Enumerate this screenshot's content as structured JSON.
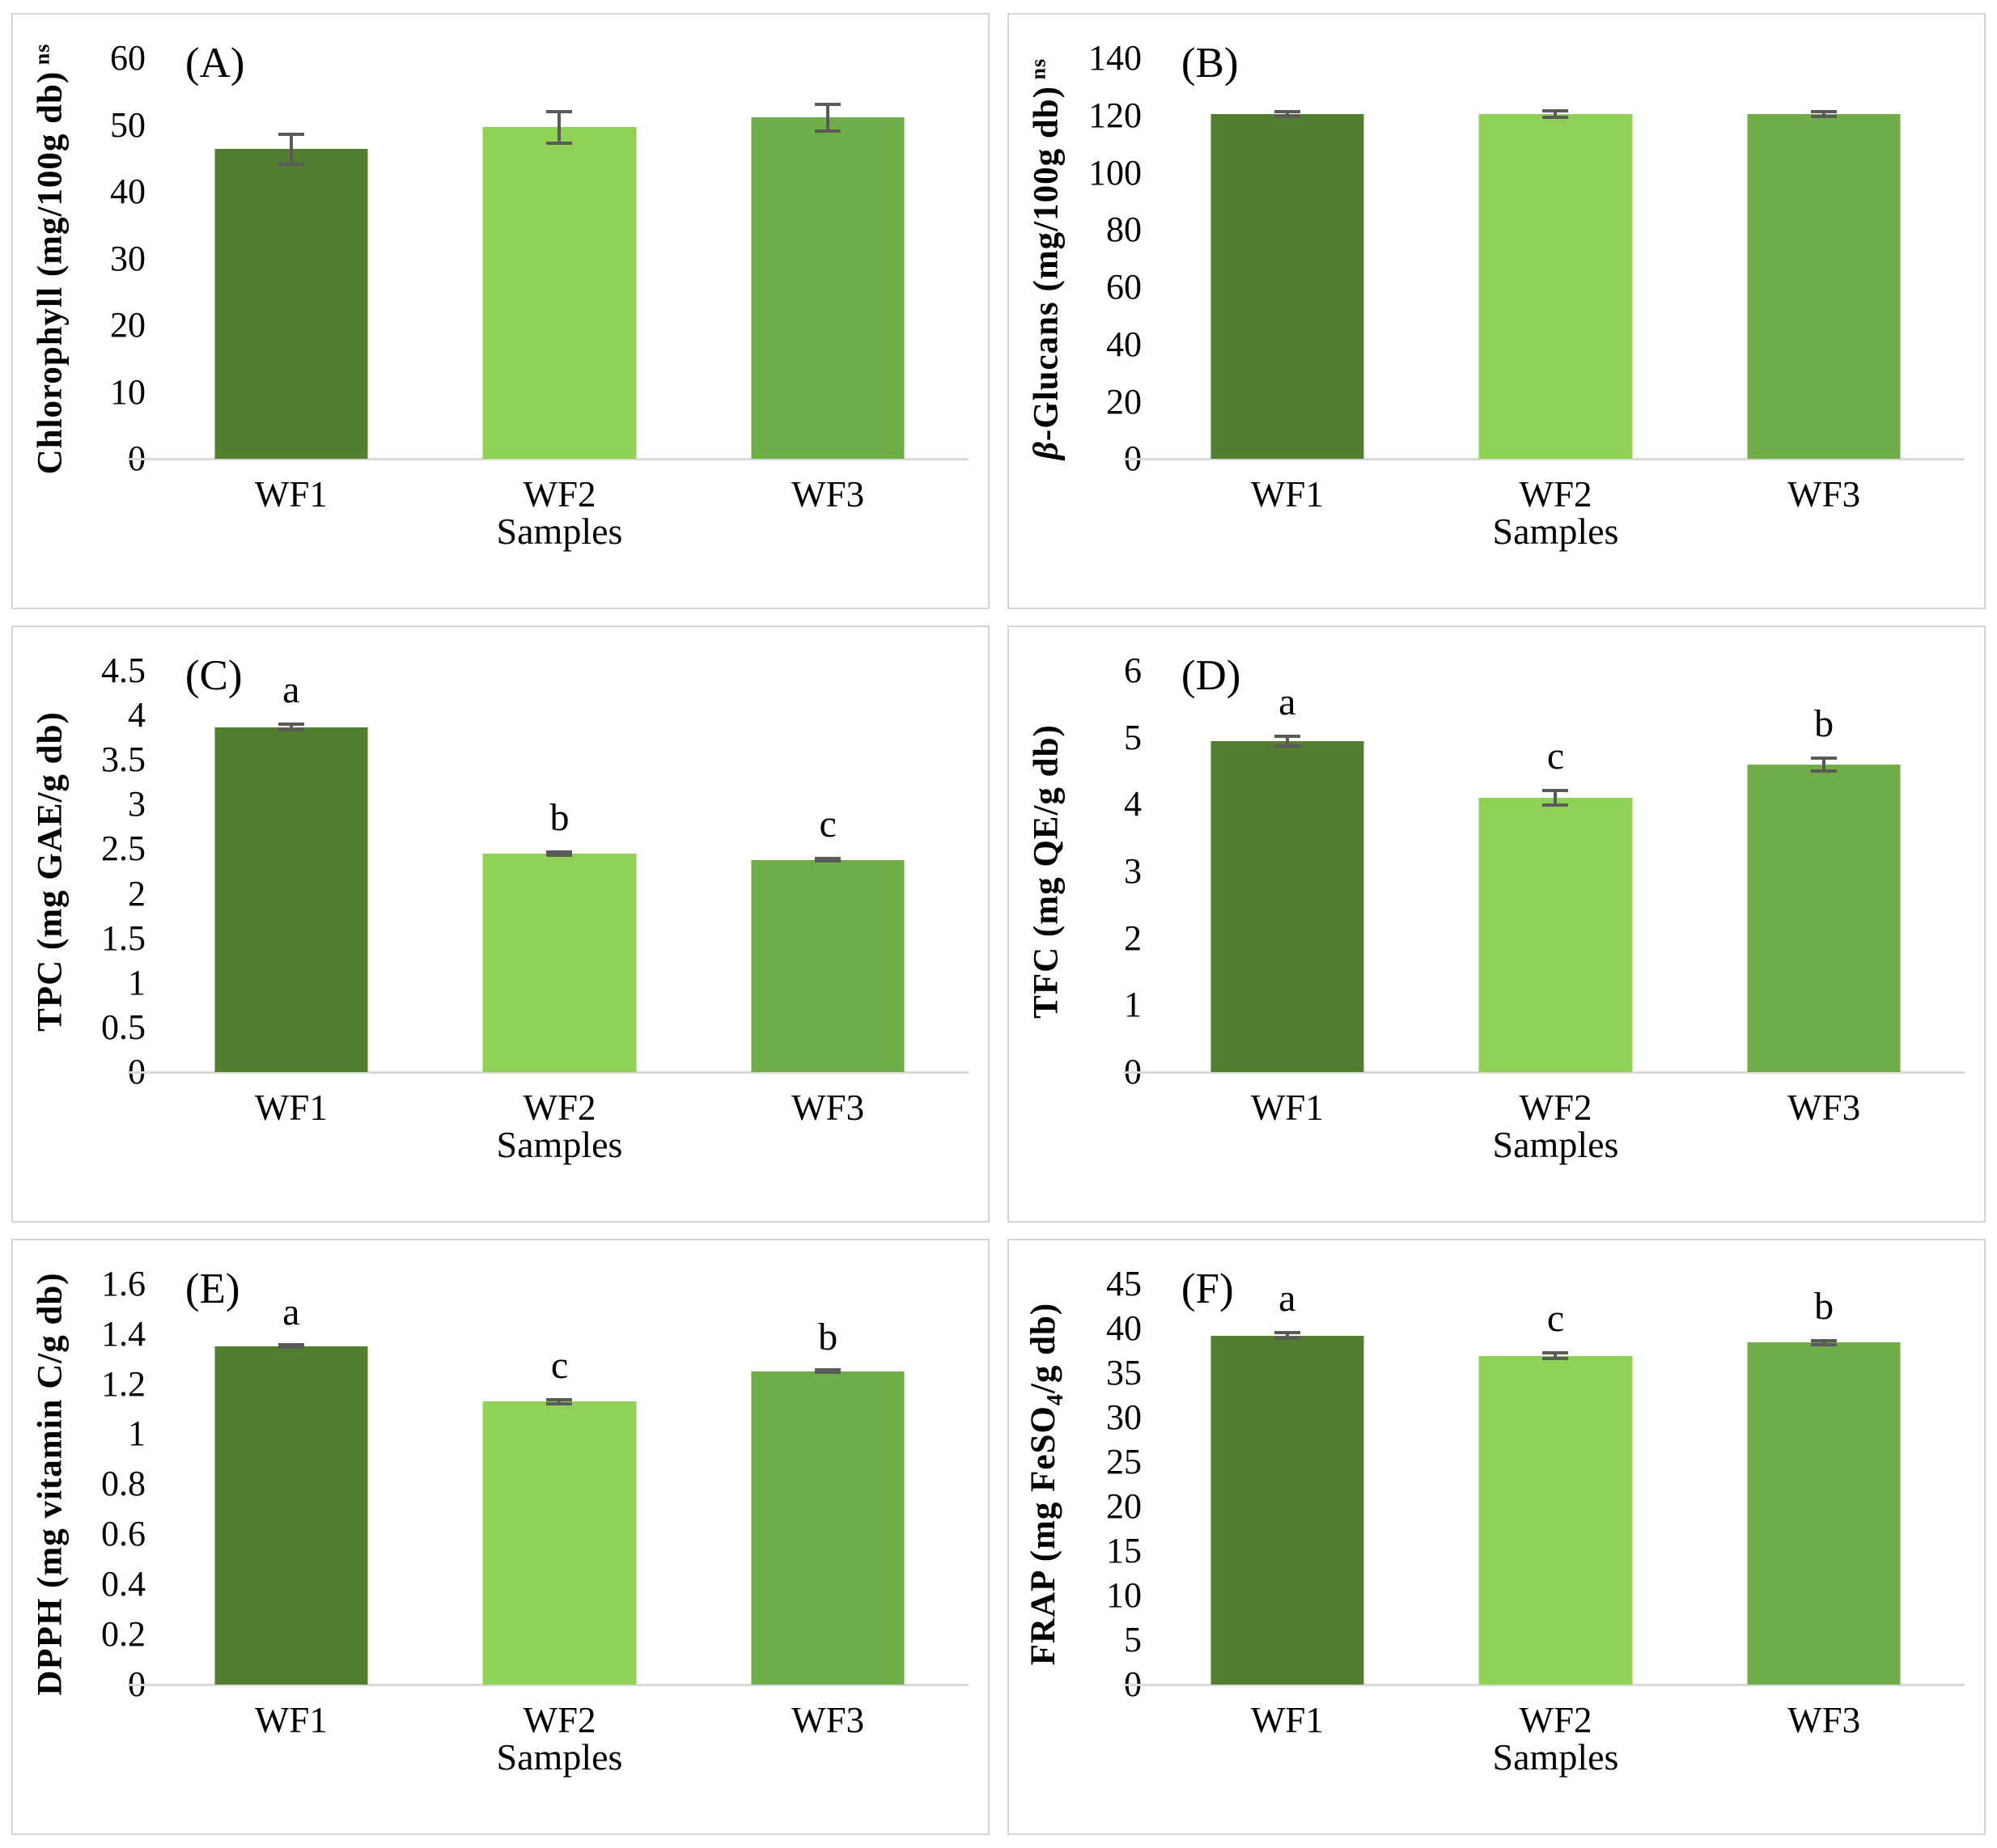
{
  "figure": {
    "x_axis_title": "Samples",
    "categories": [
      "WF1",
      "WF2",
      "WF3"
    ],
    "bar_colors": [
      "#537e30",
      "#8ed155",
      "#6fad48"
    ],
    "error_bar_color": "#5a5a5a",
    "axis_line_color": "#d9d9d9",
    "panel_border_color": "#d4d4d4"
  },
  "chart_data": [
    {
      "type": "bar",
      "panel_letter": "(A)",
      "ylabel": "Chlorophyll (mg/100g db) ns",
      "ylabel_segments": [
        {
          "t": "Chlorophyll (mg/100g db)"
        },
        {
          "t": " ns",
          "style": "super"
        }
      ],
      "categories": [
        "WF1",
        "WF2",
        "WF3"
      ],
      "values": [
        46.4,
        49.7,
        51.1
      ],
      "errors": [
        2.5,
        2.6,
        2.3
      ],
      "sig_letters": [
        "",
        "",
        ""
      ],
      "ylim": [
        0,
        60
      ],
      "ytick_step": 10,
      "ytick_labels": [
        "0",
        "10",
        "20",
        "30",
        "40",
        "50",
        "60"
      ],
      "xlabel": "Samples"
    },
    {
      "type": "bar",
      "panel_letter": "(B)",
      "ylabel": "β-Glucans (mg/100g db) ns",
      "ylabel_segments": [
        {
          "t": "β",
          "style": "italic"
        },
        {
          "t": "-Glucans (mg/100g db)"
        },
        {
          "t": " ns",
          "style": "super"
        }
      ],
      "categories": [
        "WF1",
        "WF2",
        "WF3"
      ],
      "values": [
        120.5,
        120.5,
        120.5
      ],
      "errors": [
        1.3,
        1.6,
        1.5
      ],
      "sig_letters": [
        "",
        "",
        ""
      ],
      "ylim": [
        0,
        140
      ],
      "ytick_step": 20,
      "ytick_labels": [
        "0",
        "20",
        "40",
        "60",
        "80",
        "100",
        "120",
        "140"
      ],
      "xlabel": "Samples"
    },
    {
      "type": "bar",
      "panel_letter": "(C)",
      "ylabel": "TPC (mg GAE/g db)",
      "ylabel_segments": [
        {
          "t": "TPC (mg GAE/g db)"
        }
      ],
      "categories": [
        "WF1",
        "WF2",
        "WF3"
      ],
      "values": [
        3.87,
        2.45,
        2.38
      ],
      "errors": [
        0.05,
        0.04,
        0.03
      ],
      "sig_letters": [
        "a",
        "b",
        "c"
      ],
      "ylim": [
        0,
        4.5
      ],
      "ytick_step": 0.5,
      "ytick_labels": [
        "0",
        "0.5",
        "1",
        "1.5",
        "2",
        "2.5",
        "3",
        "3.5",
        "4",
        "4.5"
      ],
      "xlabel": "Samples"
    },
    {
      "type": "bar",
      "panel_letter": "(D)",
      "ylabel": "TFC (mg QE/g db)",
      "ylabel_segments": [
        {
          "t": "TFC (mg QE/g db)"
        }
      ],
      "categories": [
        "WF1",
        "WF2",
        "WF3"
      ],
      "values": [
        4.95,
        4.1,
        4.6
      ],
      "errors": [
        0.1,
        0.13,
        0.12
      ],
      "sig_letters": [
        "a",
        "c",
        "b"
      ],
      "ylim": [
        0,
        6
      ],
      "ytick_step": 1,
      "ytick_labels": [
        "0",
        "1",
        "2",
        "3",
        "4",
        "5",
        "6"
      ],
      "xlabel": "Samples"
    },
    {
      "type": "bar",
      "panel_letter": "(E)",
      "ylabel": "DPPH (mg vitamin C/g db)",
      "ylabel_segments": [
        {
          "t": "DPPH (mg vitamin C/g db)"
        }
      ],
      "categories": [
        "WF1",
        "WF2",
        "WF3"
      ],
      "values": [
        1.35,
        1.13,
        1.25
      ],
      "errors": [
        0.008,
        0.015,
        0.008
      ],
      "sig_letters": [
        "a",
        "c",
        "b"
      ],
      "ylim": [
        0,
        1.6
      ],
      "ytick_step": 0.2,
      "ytick_labels": [
        "0",
        "0.2",
        "0.4",
        "0.6",
        "0.8",
        "1",
        "1.2",
        "1.4",
        "1.6"
      ],
      "xlabel": "Samples"
    },
    {
      "type": "bar",
      "panel_letter": "(F)",
      "ylabel": "FRAP (mg FeSO4/g db)",
      "ylabel_segments": [
        {
          "t": "FRAP (mg FeSO"
        },
        {
          "t": "4",
          "style": "sub"
        },
        {
          "t": "/g db)"
        }
      ],
      "categories": [
        "WF1",
        "WF2",
        "WF3"
      ],
      "values": [
        39.2,
        36.9,
        38.4
      ],
      "errors": [
        0.5,
        0.5,
        0.4
      ],
      "sig_letters": [
        "a",
        "c",
        "b"
      ],
      "ylim": [
        0,
        45
      ],
      "ytick_step": 5,
      "ytick_labels": [
        "0",
        "5",
        "10",
        "15",
        "20",
        "25",
        "30",
        "35",
        "40",
        "45"
      ],
      "xlabel": "Samples"
    }
  ]
}
